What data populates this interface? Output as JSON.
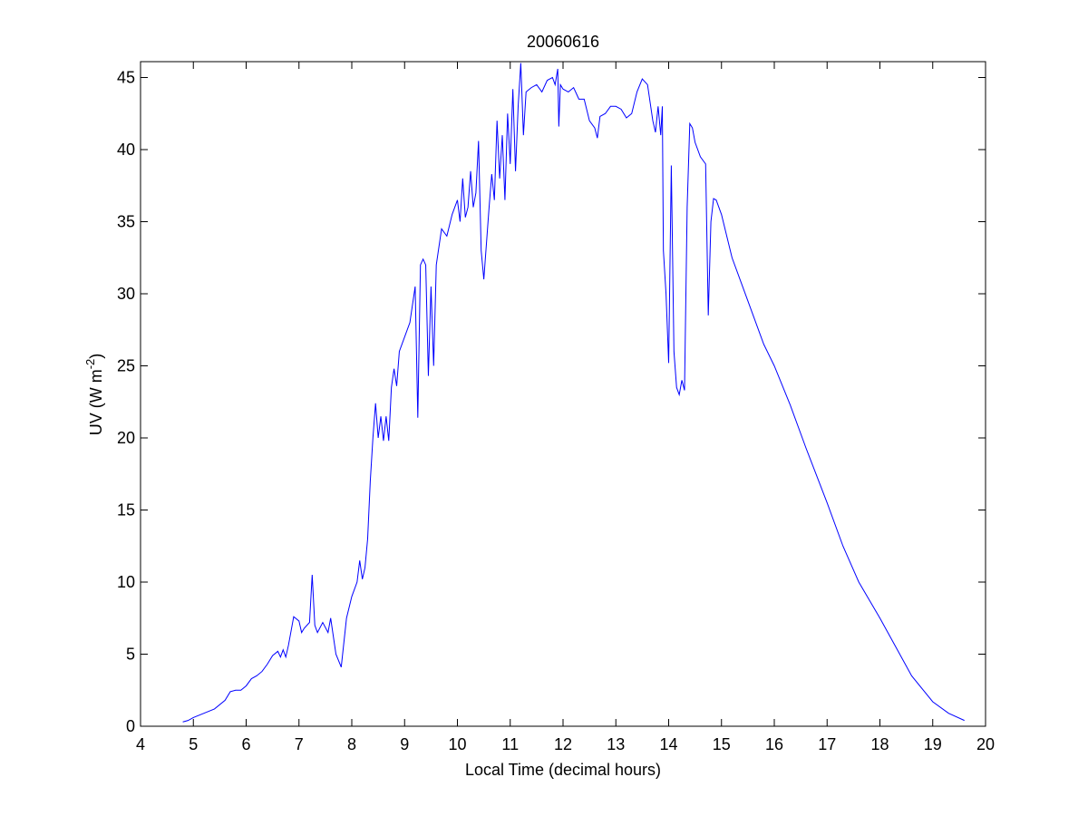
{
  "chart_data": {
    "type": "line",
    "title": "20060616",
    "xlabel": "Local Time (decimal hours)",
    "ylabel": {
      "text": "UV (W m",
      "superscript": "-2",
      "suffix": ")"
    },
    "color": "#0000ff",
    "xlim": [
      4,
      20
    ],
    "xticks": [
      4,
      5,
      6,
      7,
      8,
      9,
      10,
      11,
      12,
      13,
      14,
      15,
      16,
      17,
      18,
      19,
      20
    ],
    "ylim": [
      0,
      46.1
    ],
    "yticks": [
      0,
      5,
      10,
      15,
      20,
      25,
      30,
      35,
      40,
      45
    ],
    "x": [
      4.8,
      4.9,
      5.0,
      5.2,
      5.4,
      5.6,
      5.7,
      5.8,
      5.9,
      6.0,
      6.1,
      6.2,
      6.3,
      6.4,
      6.5,
      6.6,
      6.65,
      6.7,
      6.75,
      6.8,
      6.9,
      7.0,
      7.05,
      7.1,
      7.2,
      7.25,
      7.3,
      7.35,
      7.45,
      7.55,
      7.6,
      7.7,
      7.8,
      7.9,
      8.0,
      8.1,
      8.15,
      8.2,
      8.25,
      8.3,
      8.35,
      8.4,
      8.45,
      8.5,
      8.55,
      8.6,
      8.65,
      8.7,
      8.75,
      8.8,
      8.85,
      8.9,
      9.0,
      9.1,
      9.2,
      9.25,
      9.3,
      9.35,
      9.4,
      9.45,
      9.5,
      9.55,
      9.6,
      9.7,
      9.8,
      9.9,
      10.0,
      10.05,
      10.1,
      10.15,
      10.2,
      10.25,
      10.3,
      10.35,
      10.4,
      10.45,
      10.5,
      10.6,
      10.65,
      10.7,
      10.75,
      10.8,
      10.85,
      10.9,
      10.95,
      11.0,
      11.05,
      11.1,
      11.15,
      11.2,
      11.25,
      11.3,
      11.4,
      11.5,
      11.6,
      11.7,
      11.8,
      11.85,
      11.9,
      11.92,
      11.95,
      12.0,
      12.1,
      12.2,
      12.3,
      12.4,
      12.5,
      12.6,
      12.65,
      12.7,
      12.8,
      12.9,
      13.0,
      13.1,
      13.2,
      13.3,
      13.4,
      13.5,
      13.6,
      13.7,
      13.75,
      13.8,
      13.85,
      13.88,
      13.9,
      13.95,
      14.0,
      14.05,
      14.1,
      14.15,
      14.2,
      14.25,
      14.3,
      14.35,
      14.4,
      14.45,
      14.5,
      14.6,
      14.7,
      14.75,
      14.8,
      14.85,
      14.9,
      15.0,
      15.2,
      15.5,
      15.8,
      16.0,
      16.3,
      16.6,
      17.0,
      17.3,
      17.6,
      18.0,
      18.3,
      18.6,
      19.0,
      19.3,
      19.6
    ],
    "values": [
      0.3,
      0.4,
      0.6,
      0.9,
      1.2,
      1.8,
      2.4,
      2.5,
      2.5,
      2.8,
      3.3,
      3.5,
      3.8,
      4.3,
      4.9,
      5.2,
      4.8,
      5.3,
      4.8,
      5.6,
      7.6,
      7.3,
      6.5,
      6.8,
      7.2,
      10.5,
      7.0,
      6.5,
      7.2,
      6.5,
      7.5,
      5.0,
      4.1,
      7.5,
      9.0,
      10.0,
      11.5,
      10.2,
      11.0,
      13.0,
      17.0,
      20.0,
      22.4,
      20.0,
      21.5,
      19.8,
      21.5,
      19.8,
      23.5,
      24.8,
      23.6,
      26.0,
      27.0,
      28.0,
      30.5,
      21.4,
      32.0,
      32.4,
      32.0,
      24.3,
      30.5,
      25.0,
      32.0,
      34.5,
      34.0,
      35.5,
      36.5,
      35.0,
      38.0,
      35.3,
      36.0,
      38.5,
      36.0,
      37.0,
      40.6,
      33.0,
      31.0,
      36.0,
      38.3,
      36.5,
      42.0,
      38.0,
      41.0,
      36.5,
      42.5,
      39.0,
      44.2,
      38.5,
      43.0,
      46.0,
      41.0,
      44.0,
      44.3,
      44.5,
      44.0,
      44.8,
      45.0,
      44.5,
      45.6,
      41.6,
      44.5,
      44.2,
      44.0,
      44.3,
      43.5,
      43.5,
      42.0,
      41.5,
      40.8,
      42.3,
      42.5,
      43.0,
      43.0,
      42.8,
      42.2,
      42.5,
      44.0,
      44.9,
      44.5,
      42.0,
      41.2,
      43.0,
      41.0,
      43.0,
      33.0,
      30.0,
      25.2,
      38.9,
      26.0,
      23.5,
      23.0,
      24.0,
      23.3,
      36.0,
      41.8,
      41.5,
      40.5,
      39.5,
      39.0,
      28.5,
      35.0,
      36.6,
      36.5,
      35.5,
      32.5,
      29.5,
      26.5,
      25.0,
      22.3,
      19.3,
      15.5,
      12.5,
      10.0,
      7.5,
      5.5,
      3.5,
      1.7,
      0.9,
      0.4
    ]
  }
}
